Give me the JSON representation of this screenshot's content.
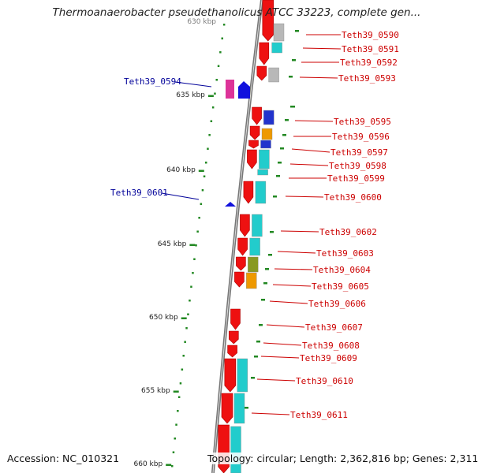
{
  "title": "Thermoanaerobacter pseudethanolicus ATCC 33223, complete gen...",
  "accession": "Accession: NC_010321",
  "topology": "Topology: circular; Length: 2,362,816 bp; Genes: 2,311",
  "colors": {
    "forward_gene": "#ee1111",
    "forward_label": "#cc0000",
    "reverse_gene": "#1111dd",
    "reverse_label": "#000099",
    "backbone": "#777777",
    "tick": "#228822",
    "cog_cyan": "#22cccc",
    "cog_magenta": "#dd3399",
    "cog_gray": "#b8b8b8",
    "cog_orange": "#ee9900",
    "cog_olive": "#889922",
    "cog_blue": "#2233cc"
  },
  "scale_labels": [
    "635 kbp",
    "640 kbp",
    "645 kbp",
    "650 kbp",
    "655 kbp",
    "660 kbp"
  ],
  "scale_label_top": "630 kbp",
  "genes": {
    "forward": [
      "Teth39_0590",
      "Teth39_0591",
      "Teth39_0592",
      "Teth39_0593",
      "Teth39_0595",
      "Teth39_0596",
      "Teth39_0597",
      "Teth39_0598",
      "Teth39_0599",
      "Teth39_0600",
      "Teth39_0602",
      "Teth39_0603",
      "Teth39_0604",
      "Teth39_0605",
      "Teth39_0606",
      "Teth39_0607",
      "Teth39_0608",
      "Teth39_0609",
      "Teth39_0610",
      "Teth39_0611"
    ],
    "reverse": [
      "Teth39_0594",
      "Teth39_0601"
    ]
  }
}
